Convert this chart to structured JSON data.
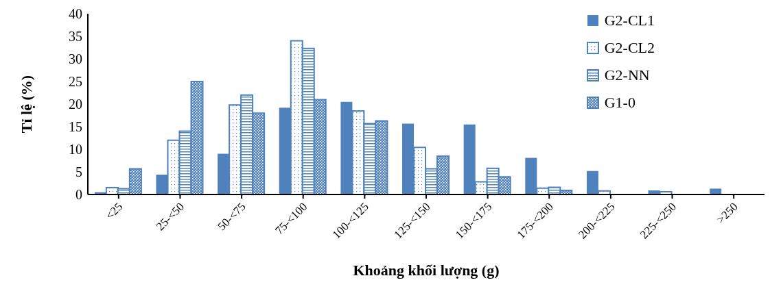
{
  "chart_data": {
    "type": "bar",
    "xlabel": "Khoảng khối lượng (g)",
    "ylabel": "Tỉ lệ (%)",
    "categories": [
      "<25",
      "25-<50",
      "50-<75",
      "75-<100",
      "100-<125",
      "125-<150",
      "150-<175",
      "175-<200",
      "200-<225",
      "225-<250",
      ">250"
    ],
    "series": [
      {
        "name": "G2-CL1",
        "color": "#4f81bd",
        "values": [
          0.5,
          4.4,
          9,
          19.2,
          20.5,
          15.7,
          15.5,
          8.1,
          5.2,
          0.9,
          1.3
        ]
      },
      {
        "name": "G2-CL2",
        "color": "#4f81bd",
        "values": [
          1.5,
          12,
          19.8,
          34,
          18.5,
          10.4,
          2.8,
          1.4,
          0.8,
          0.6,
          null
        ]
      },
      {
        "name": "G2-NN",
        "color": "#4f81bd",
        "values": [
          1.3,
          14,
          22,
          32.3,
          15.7,
          5.7,
          5.8,
          1.6,
          null,
          null,
          null
        ]
      },
      {
        "name": "G1-0",
        "color": "#4f81bd",
        "values": [
          5.7,
          25,
          18,
          21,
          16.3,
          8.5,
          3.9,
          0.9,
          null,
          null,
          null
        ]
      }
    ],
    "ylim": [
      0,
      40
    ],
    "yticks": [
      0,
      5,
      10,
      15,
      20,
      25,
      30,
      35,
      40
    ],
    "grid": false,
    "legend": "top right"
  }
}
